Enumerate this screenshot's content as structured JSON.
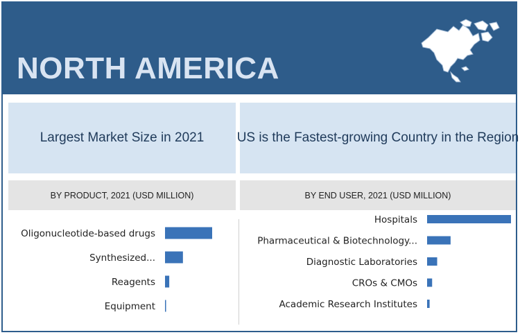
{
  "header": {
    "title": "NORTH AMERICA",
    "icon": "north-america-map-icon"
  },
  "colors": {
    "header_bg": "#2e5c8a",
    "panel_bg": "#d6e4f2",
    "subpanel_bg": "#e4e4e4",
    "bar": "#3a73b8"
  },
  "panels": {
    "left_heading": "Largest Market Size in 2021",
    "right_heading": "US is the Fastest-growing Country in the Region",
    "left_subheading": "BY PRODUCT, 2021 (USD MILLION)",
    "right_subheading": "BY END USER, 2021 (USD MILLION)"
  },
  "chart_data": [
    {
      "type": "bar",
      "orientation": "horizontal",
      "categories": [
        "Oligonucleotide-based drugs",
        "Synthesized...",
        "Reagents",
        "Equipment"
      ],
      "values": [
        100,
        38,
        9,
        2
      ],
      "grid": false,
      "axis_labels_visible": false
    },
    {
      "type": "bar",
      "orientation": "horizontal",
      "categories": [
        "Hospitals",
        "Pharmaceutical & Biotechnology...",
        "Diagnostic Laboratories",
        "CROs & CMOs",
        "Academic Research Institutes"
      ],
      "values": [
        100,
        28,
        12,
        6,
        3
      ],
      "grid": false,
      "axis_labels_visible": false
    }
  ]
}
